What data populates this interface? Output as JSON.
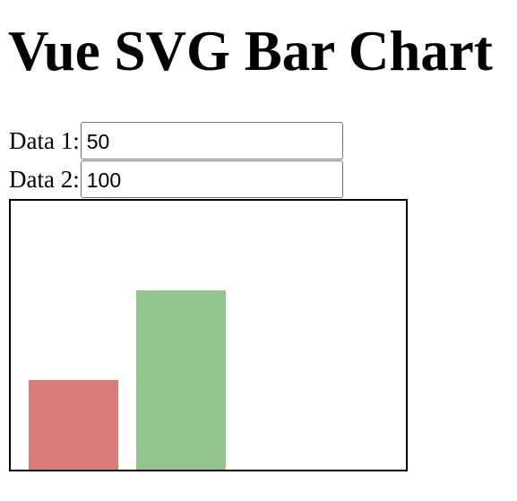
{
  "page": {
    "title": "Vue SVG Bar Chart"
  },
  "form": {
    "fields": [
      {
        "label": "Data 1:",
        "value": "50"
      },
      {
        "label": "Data 2:",
        "value": "100"
      }
    ]
  },
  "chart_data": {
    "type": "bar",
    "values": [
      50,
      100
    ],
    "colors": [
      "#d97b77",
      "#93c48d"
    ],
    "ylim": [
      0,
      150
    ],
    "grid": false
  }
}
